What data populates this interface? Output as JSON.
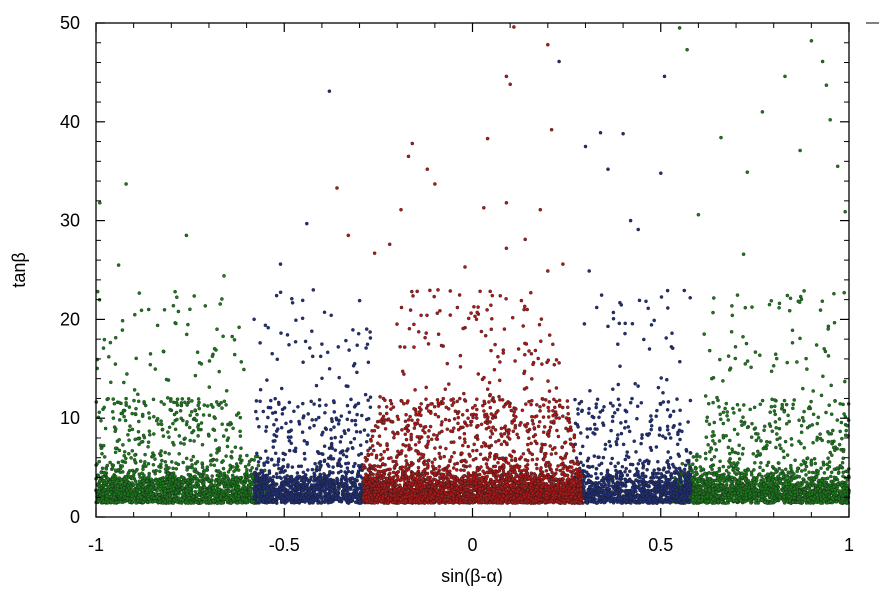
{
  "chart_data": {
    "type": "scatter",
    "title": "",
    "xlabel": "sin(β-α)",
    "ylabel": "tanβ",
    "xlim": [
      -1,
      1
    ],
    "ylim": [
      0,
      50
    ],
    "x_ticks": [
      -1,
      -0.5,
      0,
      0.5,
      1
    ],
    "x_tick_labels": [
      "-1",
      "-0.5",
      "0",
      "0.5",
      "1"
    ],
    "y_ticks": [
      0,
      10,
      20,
      30,
      40,
      50
    ],
    "y_tick_labels": [
      "0",
      "10",
      "20",
      "30",
      "40",
      "50"
    ],
    "grid": false,
    "legend": false,
    "marker_style": "small dark-edged dots",
    "series": [
      {
        "color": "#1a7a1a",
        "region": "|sin(β-α)| > ~0.55",
        "density": "very dense band at tanβ 1.5–5, sparse up to 50",
        "points": [
          [
            -0.99,
            31.8
          ],
          [
            -0.92,
            33.7
          ],
          [
            -0.76,
            28.5
          ],
          [
            -0.66,
            24.4
          ],
          [
            -0.79,
            22.8
          ],
          [
            -0.86,
            21.0
          ],
          [
            -0.94,
            25.5
          ],
          [
            -0.98,
            17.1
          ],
          [
            -0.72,
            15.5
          ],
          [
            -0.62,
            19.2
          ],
          [
            0.6,
            30.6
          ],
          [
            0.66,
            38.4
          ],
          [
            0.73,
            34.9
          ],
          [
            0.77,
            41.0
          ],
          [
            0.83,
            44.6
          ],
          [
            0.87,
            37.1
          ],
          [
            0.9,
            48.2
          ],
          [
            0.93,
            46.1
          ],
          [
            0.95,
            40.2
          ],
          [
            0.97,
            35.5
          ],
          [
            0.55,
            49.5
          ],
          [
            0.57,
            47.3
          ],
          [
            0.94,
            43.7
          ],
          [
            0.99,
            30.9
          ],
          [
            0.96,
            22.6
          ],
          [
            0.72,
            26.6
          ],
          [
            0.69,
            20.4
          ],
          [
            0.85,
            18.9
          ],
          [
            0.8,
            15.3
          ],
          [
            0.64,
            14.1
          ]
        ]
      },
      {
        "color": "#1f2f7a",
        "region": "~0.28 < |sin(β-α)| < ~0.57",
        "density": "dense band at tanβ 1.5–5, sparse up to 47",
        "points": [
          [
            -0.38,
            43.1
          ],
          [
            -0.44,
            29.7
          ],
          [
            -0.51,
            25.6
          ],
          [
            -0.48,
            22.1
          ],
          [
            -0.55,
            19.4
          ],
          [
            -0.4,
            17.5
          ],
          [
            -0.3,
            21.9
          ],
          [
            0.34,
            38.9
          ],
          [
            0.4,
            38.8
          ],
          [
            0.51,
            44.6
          ],
          [
            0.5,
            34.8
          ],
          [
            0.36,
            35.2
          ],
          [
            0.42,
            30.0
          ],
          [
            0.44,
            29.1
          ],
          [
            0.31,
            24.9
          ],
          [
            0.33,
            21.2
          ],
          [
            0.39,
            19.6
          ],
          [
            0.47,
            17.0
          ],
          [
            0.53,
            18.6
          ],
          [
            0.3,
            37.5
          ],
          [
            0.23,
            46.1
          ]
        ]
      },
      {
        "color": "#b01818",
        "region": "|sin(β-α)| < ~0.29",
        "density": "very dense band at tanβ 1.5–5, sparse up to 50",
        "points": [
          [
            0.11,
            49.6
          ],
          [
            0.2,
            47.8
          ],
          [
            0.09,
            44.6
          ],
          [
            0.1,
            43.8
          ],
          [
            0.21,
            39.2
          ],
          [
            -0.16,
            37.8
          ],
          [
            -0.17,
            36.5
          ],
          [
            0.04,
            38.3
          ],
          [
            -0.12,
            35.2
          ],
          [
            -0.1,
            33.7
          ],
          [
            -0.36,
            33.3
          ],
          [
            -0.33,
            28.5
          ],
          [
            0.09,
            31.8
          ],
          [
            0.18,
            31.1
          ],
          [
            0.03,
            31.3
          ],
          [
            -0.19,
            31.1
          ],
          [
            0.14,
            28.1
          ],
          [
            -0.22,
            27.6
          ],
          [
            0.09,
            27.2
          ],
          [
            0.24,
            25.6
          ],
          [
            -0.02,
            25.3
          ],
          [
            0.2,
            24.9
          ],
          [
            -0.26,
            26.7
          ],
          [
            -0.04,
            21.2
          ],
          [
            -0.01,
            20.1
          ],
          [
            0.05,
            19.0
          ],
          [
            -0.09,
            18.5
          ],
          [
            0.15,
            16.8
          ],
          [
            -0.18,
            17.2
          ],
          [
            0.23,
            15.6
          ]
        ]
      }
    ]
  }
}
